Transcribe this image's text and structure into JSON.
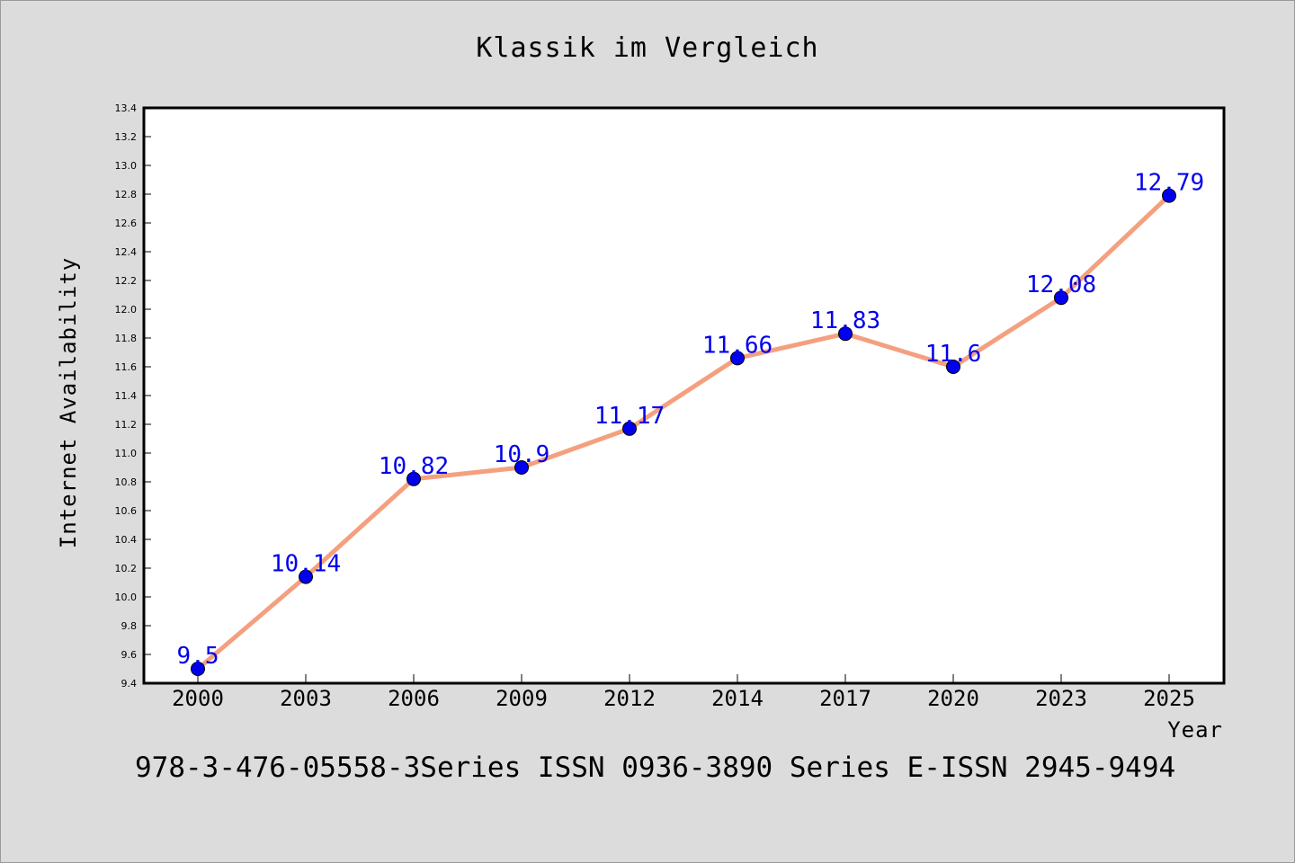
{
  "chart_data": {
    "type": "line",
    "title": "Klassik im Vergleich",
    "xlabel": "Year",
    "ylabel": "Internet Availability",
    "categories": [
      "2000",
      "2003",
      "2006",
      "2009",
      "2012",
      "2014",
      "2017",
      "2020",
      "2023",
      "2025"
    ],
    "series": [
      {
        "values": [
          9.5,
          10.14,
          10.82,
          10.9,
          11.17,
          11.66,
          11.83,
          11.6,
          12.08,
          12.79
        ],
        "labels": [
          "9.5",
          "10.14",
          "10.82",
          "10.9",
          "11.17",
          "11.66",
          "11.83",
          "11.6",
          "12.08",
          "12.79"
        ],
        "line_color": "#f4a07f",
        "marker_color": "#0000ee"
      }
    ],
    "ylim": [
      9.4,
      13.4
    ],
    "yticks": [
      "9.4",
      "9.6",
      "9.8",
      "10.0",
      "10.2",
      "10.4",
      "10.6",
      "10.8",
      "11.0",
      "11.2",
      "11.4",
      "11.6",
      "11.8",
      "12.0",
      "12.2",
      "12.4",
      "12.6",
      "12.8",
      "13.0",
      "13.2",
      "13.4"
    ],
    "grid": false,
    "legend": "none",
    "label_color": "#0000ee"
  },
  "footer": {
    "text": "978-3-476-05558-3Series ISSN 0936-3890 Series E-ISSN 2945-9494"
  },
  "colors": {
    "background": "#dcdcdc",
    "plot_background": "#ffffff"
  }
}
